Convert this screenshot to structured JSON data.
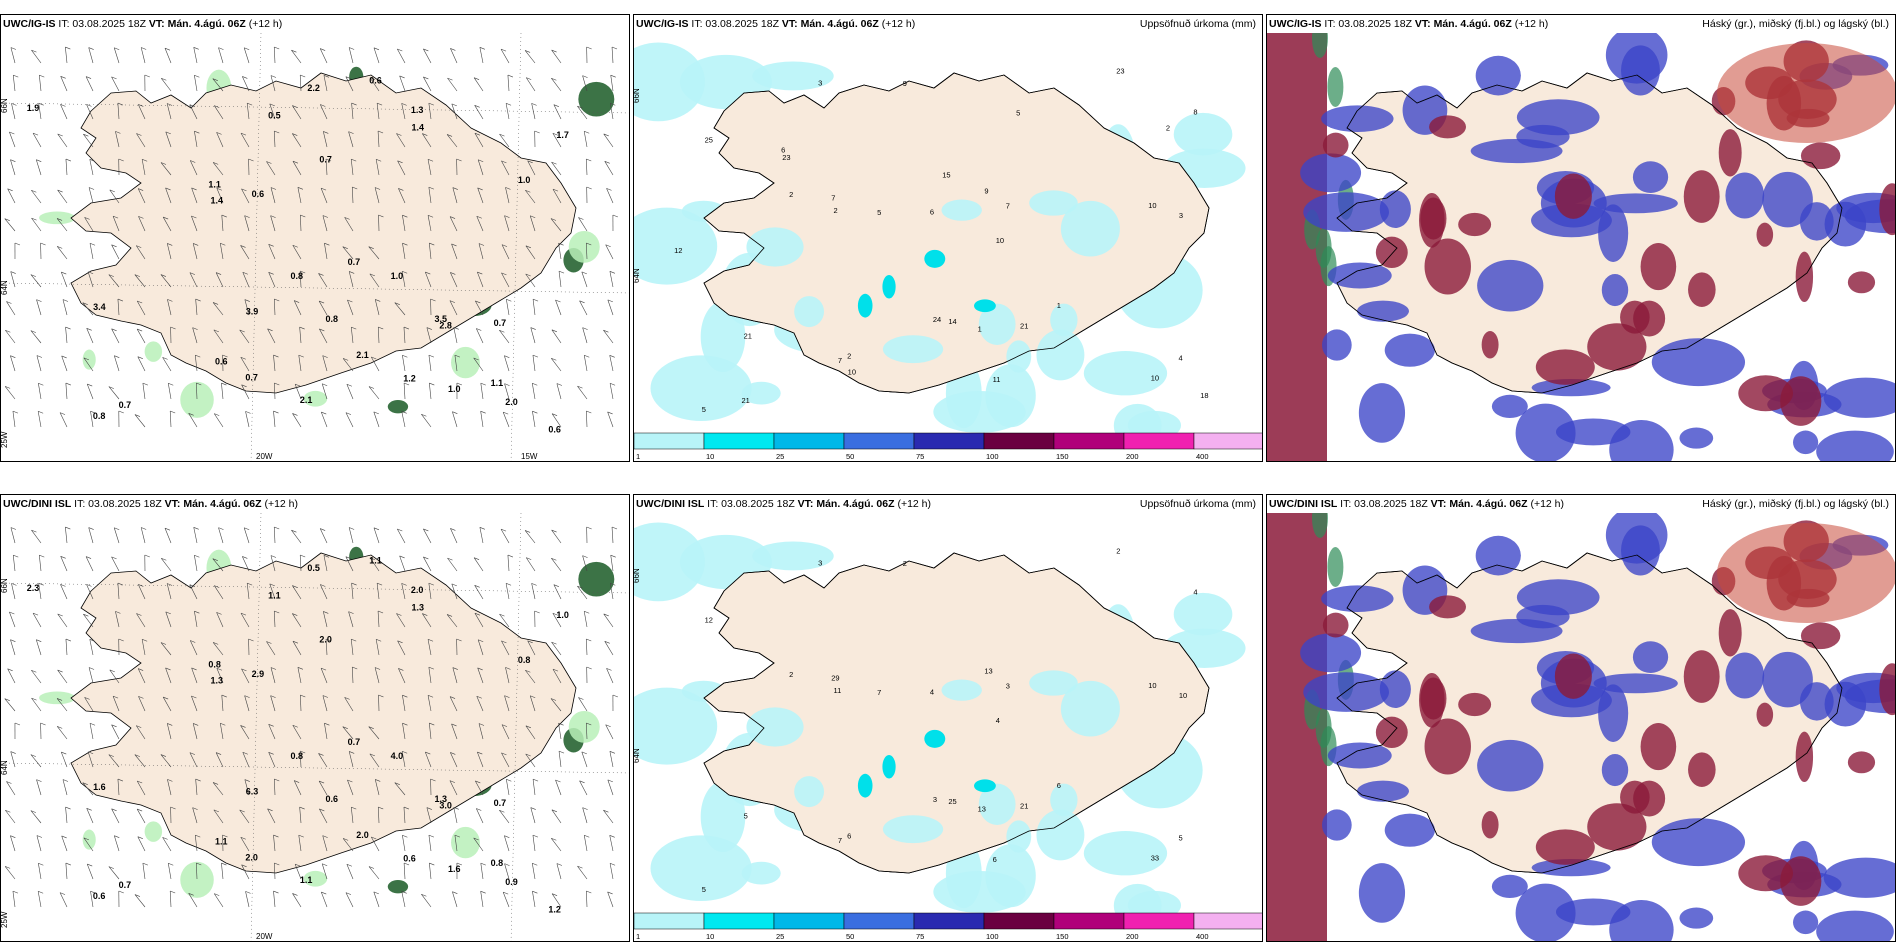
{
  "rows": [
    {
      "model": "UWC/IG-IS",
      "it_text": "IT: 03.08.2025 18Z",
      "vt_text": "VT: Mán. 4.ágú. 06Z",
      "lead": "(+12 h)",
      "precip_title": "Uppsöfnuð úrkoma (mm)",
      "cloud_title": "Háský (gr.), miðský (fj.bl.) og lágský (bl.)",
      "lat_labels": [
        "66N",
        "64N",
        "25W"
      ],
      "lon_labels": [
        "20W",
        "15W"
      ],
      "wind_values": [
        "0.8",
        "0.7",
        "0.7",
        "0.8",
        "0.5",
        "0.6",
        "1.1",
        "1.3",
        "1.0",
        "0.6",
        "0.6",
        "1.4",
        "0.7",
        "2.2",
        "1.2",
        "1.1",
        "3.5",
        "3.4",
        "0.8",
        "1.7",
        "1.9",
        "0.7",
        "2.1",
        "1.0",
        "2.8",
        "1.4",
        "0.6",
        "0.7",
        "1.0",
        "2.1",
        "2.0",
        "3.9"
      ],
      "precip_values": [
        "5",
        "4",
        "3",
        "2",
        "1",
        "7",
        "10",
        "6",
        "5",
        "14",
        "9",
        "3",
        "2",
        "2",
        "1",
        "7",
        "25",
        "21",
        "10",
        "21",
        "24",
        "7",
        "10",
        "9",
        "8",
        "11",
        "23",
        "21",
        "5",
        "18",
        "23",
        "10",
        "6",
        "15",
        "12",
        "2"
      ]
    },
    {
      "model": "UWC/DINI ISL",
      "it_text": "IT: 03.08.2025 18Z",
      "vt_text": "VT: Mán. 4.ágú. 06Z",
      "lead": "(+12 h)",
      "precip_title": "Uppsöfnuð úrkoma (mm)",
      "cloud_title": "Háský (gr.), miðský (fj.bl.) og lágský (bl.)",
      "lat_labels": [
        "66N",
        "64N",
        "25W"
      ],
      "lon_labels": [
        "20W"
      ],
      "wind_values": [
        "0.6",
        "0.7",
        "0.7",
        "0.6",
        "1.1",
        "1.1",
        "0.8",
        "2.0",
        "1.6",
        "1.1",
        "1.2",
        "1.3",
        "2.0",
        "0.5",
        "0.6",
        "0.8",
        "1.3",
        "1.6",
        "0.8",
        "1.0",
        "2.3",
        "0.7",
        "1.1",
        "4.0",
        "3.0",
        "1.3",
        "2.9",
        "2.0",
        "0.8",
        "2.0",
        "0.9",
        "6.3"
      ],
      "precip_values": [
        "5",
        "5",
        "3",
        "2",
        "6",
        "3",
        "4",
        "4",
        "7",
        "25",
        "13",
        "10",
        "11",
        "6",
        "13",
        "7",
        "12",
        "21",
        "10",
        "5",
        "3",
        "29",
        "33",
        "2",
        "4",
        "6",
        "2"
      ]
    }
  ],
  "legend_thresholds": [
    "1",
    "10",
    "25",
    "50",
    "75",
    "100",
    "150",
    "200",
    "400"
  ],
  "legend_colors": [
    "#b8f4f8",
    "#00e8f0",
    "#00b8e8",
    "#3a6ee0",
    "#2a2ab0",
    "#6a0040",
    "#b0007a",
    "#f020b0",
    "#f4b0f0"
  ],
  "colors": {
    "land": "#f8eadc",
    "precip_light": "#b8f4f8",
    "precip_mid": "#00e0ea",
    "wind_green_light": "#b8f0b8",
    "wind_green_dark": "#1a5a26",
    "cloud_high": "#8b1a3a",
    "cloud_mid": "#3b44c8",
    "cloud_low": "#2e8b57"
  }
}
